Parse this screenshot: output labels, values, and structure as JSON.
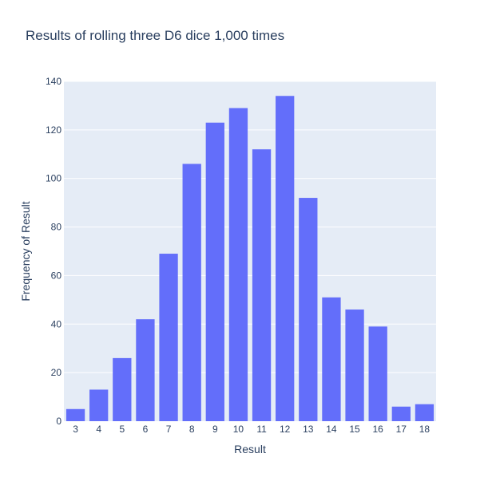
{
  "chart_data": {
    "type": "bar",
    "title": "Results of rolling three D6 dice 1,000 times",
    "xlabel": "Result",
    "ylabel": "Frequency of Result",
    "categories": [
      "3",
      "4",
      "5",
      "6",
      "7",
      "8",
      "9",
      "10",
      "11",
      "12",
      "13",
      "14",
      "15",
      "16",
      "17",
      "18"
    ],
    "values": [
      5,
      13,
      26,
      42,
      69,
      106,
      123,
      129,
      112,
      134,
      92,
      51,
      46,
      39,
      6,
      7
    ],
    "ylim": [
      0,
      140
    ],
    "yticks": [
      0,
      20,
      40,
      60,
      80,
      100,
      120,
      140
    ],
    "grid": true,
    "colors": {
      "bar": "#636efa",
      "plot_bg": "#e5ecf6",
      "grid": "#ffffff",
      "text": "#2a3f5f"
    }
  }
}
